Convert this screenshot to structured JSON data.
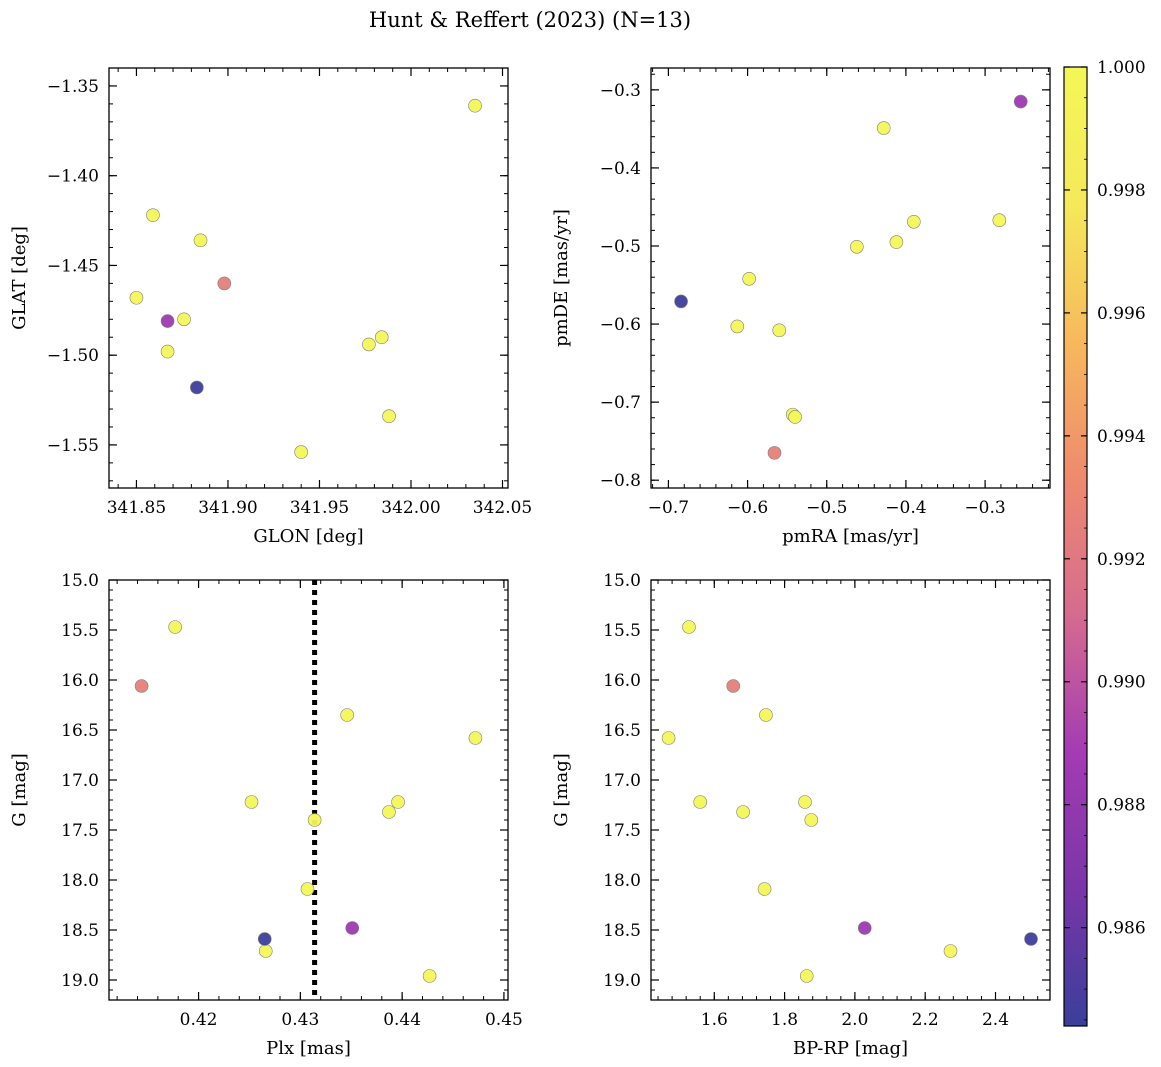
{
  "figure": {
    "title": "Hunt & Reffert (2023) (N=13)"
  },
  "colorbar": {
    "colormap": "plasma-like",
    "colors": [
      "#3a3f9a",
      "#7a35a8",
      "#a43bb4",
      "#d56b8f",
      "#ee8a6e",
      "#f7b95c",
      "#f5e95a",
      "#f4f758"
    ],
    "range": [
      0.9844,
      1.0
    ],
    "ticks": [
      {
        "value": 0.986,
        "label": "0.986"
      },
      {
        "value": 0.988,
        "label": "0.988"
      },
      {
        "value": 0.99,
        "label": "0.990"
      },
      {
        "value": 0.992,
        "label": "0.992"
      },
      {
        "value": 0.994,
        "label": "0.994"
      },
      {
        "value": 0.996,
        "label": "0.996"
      },
      {
        "value": 0.998,
        "label": "0.998"
      },
      {
        "value": 1.0,
        "label": "1.000"
      }
    ]
  },
  "chart_data": [
    {
      "type": "scatter",
      "id": "glon-glat",
      "xlabel": "GLON [deg]",
      "ylabel": "GLAT [deg]",
      "xlim": [
        341.835,
        342.053
      ],
      "ylim": [
        -1.574,
        -1.34
      ],
      "y_inverted": false,
      "xticks": [
        {
          "value": 341.85,
          "label": "341.85"
        },
        {
          "value": 341.9,
          "label": "341.90"
        },
        {
          "value": 341.95,
          "label": "341.95"
        },
        {
          "value": 342.0,
          "label": "342.00"
        },
        {
          "value": 342.05,
          "label": "342.05"
        }
      ],
      "yticks": [
        {
          "value": -1.35,
          "label": "−1.35"
        },
        {
          "value": -1.4,
          "label": "−1.40"
        },
        {
          "value": -1.45,
          "label": "−1.45"
        },
        {
          "value": -1.5,
          "label": "−1.50"
        },
        {
          "value": -1.55,
          "label": "−1.55"
        }
      ],
      "points": [
        {
          "x": 342.035,
          "y": -1.361,
          "c": 1.0
        },
        {
          "x": 341.859,
          "y": -1.422,
          "c": 1.0
        },
        {
          "x": 341.885,
          "y": -1.436,
          "c": 1.0
        },
        {
          "x": 341.85,
          "y": -1.468,
          "c": 1.0
        },
        {
          "x": 341.876,
          "y": -1.48,
          "c": 1.0
        },
        {
          "x": 341.867,
          "y": -1.498,
          "c": 1.0
        },
        {
          "x": 341.977,
          "y": -1.494,
          "c": 1.0
        },
        {
          "x": 341.984,
          "y": -1.49,
          "c": 1.0
        },
        {
          "x": 341.988,
          "y": -1.534,
          "c": 1.0
        },
        {
          "x": 341.94,
          "y": -1.554,
          "c": 1.0
        },
        {
          "x": 341.898,
          "y": -1.46,
          "c": 0.9925
        },
        {
          "x": 341.867,
          "y": -1.481,
          "c": 0.9885
        },
        {
          "x": 341.883,
          "y": -1.518,
          "c": 0.9845
        }
      ]
    },
    {
      "type": "scatter",
      "id": "pmra-pmde",
      "xlabel": "pmRA [mas/yr]",
      "ylabel": "pmDE [mas/yr]",
      "xlim": [
        -0.722,
        -0.218
      ],
      "ylim": [
        -0.81,
        -0.272
      ],
      "y_inverted": false,
      "xticks": [
        {
          "value": -0.7,
          "label": "−0.7"
        },
        {
          "value": -0.6,
          "label": "−0.6"
        },
        {
          "value": -0.5,
          "label": "−0.5"
        },
        {
          "value": -0.4,
          "label": "−0.4"
        },
        {
          "value": -0.3,
          "label": "−0.3"
        }
      ],
      "yticks": [
        {
          "value": -0.3,
          "label": "−0.3"
        },
        {
          "value": -0.4,
          "label": "−0.4"
        },
        {
          "value": -0.5,
          "label": "−0.5"
        },
        {
          "value": -0.6,
          "label": "−0.6"
        },
        {
          "value": -0.7,
          "label": "−0.7"
        },
        {
          "value": -0.8,
          "label": "−0.8"
        }
      ],
      "points": [
        {
          "x": -0.428,
          "y": -0.349,
          "c": 1.0
        },
        {
          "x": -0.39,
          "y": -0.469,
          "c": 1.0
        },
        {
          "x": -0.282,
          "y": -0.467,
          "c": 1.0
        },
        {
          "x": -0.412,
          "y": -0.495,
          "c": 1.0
        },
        {
          "x": -0.462,
          "y": -0.501,
          "c": 1.0
        },
        {
          "x": -0.598,
          "y": -0.542,
          "c": 1.0
        },
        {
          "x": -0.613,
          "y": -0.603,
          "c": 1.0
        },
        {
          "x": -0.56,
          "y": -0.608,
          "c": 1.0
        },
        {
          "x": -0.543,
          "y": -0.716,
          "c": 1.0
        },
        {
          "x": -0.54,
          "y": -0.719,
          "c": 1.0
        },
        {
          "x": -0.566,
          "y": -0.765,
          "c": 0.9925
        },
        {
          "x": -0.255,
          "y": -0.315,
          "c": 0.9885
        },
        {
          "x": -0.684,
          "y": -0.571,
          "c": 0.9845
        }
      ]
    },
    {
      "type": "scatter",
      "id": "plx-g",
      "xlabel": "Plx [mas]",
      "ylabel": "G [mag]",
      "xlim": [
        0.4112,
        0.4504
      ],
      "ylim": [
        15.0,
        19.2
      ],
      "y_inverted": true,
      "vline": {
        "x": 0.4314,
        "style": "dotted"
      },
      "xticks": [
        {
          "value": 0.42,
          "label": "0.42"
        },
        {
          "value": 0.43,
          "label": "0.43"
        },
        {
          "value": 0.44,
          "label": "0.44"
        },
        {
          "value": 0.45,
          "label": "0.45"
        }
      ],
      "yticks": [
        {
          "value": 15.0,
          "label": "15.0"
        },
        {
          "value": 15.5,
          "label": "15.5"
        },
        {
          "value": 16.0,
          "label": "16.0"
        },
        {
          "value": 16.5,
          "label": "16.5"
        },
        {
          "value": 17.0,
          "label": "17.0"
        },
        {
          "value": 17.5,
          "label": "17.5"
        },
        {
          "value": 18.0,
          "label": "18.0"
        },
        {
          "value": 18.5,
          "label": "18.5"
        },
        {
          "value": 19.0,
          "label": "19.0"
        }
      ],
      "points": [
        {
          "x": 0.4177,
          "y": 15.47,
          "c": 1.0
        },
        {
          "x": 0.4346,
          "y": 16.35,
          "c": 1.0
        },
        {
          "x": 0.4472,
          "y": 16.58,
          "c": 1.0
        },
        {
          "x": 0.4252,
          "y": 17.22,
          "c": 1.0
        },
        {
          "x": 0.4396,
          "y": 17.22,
          "c": 1.0
        },
        {
          "x": 0.4387,
          "y": 17.32,
          "c": 1.0
        },
        {
          "x": 0.4314,
          "y": 17.4,
          "c": 1.0
        },
        {
          "x": 0.4307,
          "y": 18.09,
          "c": 1.0
        },
        {
          "x": 0.4266,
          "y": 18.71,
          "c": 1.0
        },
        {
          "x": 0.4427,
          "y": 18.96,
          "c": 1.0
        },
        {
          "x": 0.4144,
          "y": 16.06,
          "c": 0.9925
        },
        {
          "x": 0.4351,
          "y": 18.48,
          "c": 0.9885
        },
        {
          "x": 0.4265,
          "y": 18.59,
          "c": 0.9845
        }
      ]
    },
    {
      "type": "scatter",
      "id": "bprp-g",
      "xlabel": "BP-RP [mag]",
      "ylabel": "G [mag]",
      "xlim": [
        1.42,
        2.555
      ],
      "ylim": [
        15.0,
        19.2
      ],
      "y_inverted": true,
      "xticks": [
        {
          "value": 1.6,
          "label": "1.6"
        },
        {
          "value": 1.8,
          "label": "1.8"
        },
        {
          "value": 2.0,
          "label": "2.0"
        },
        {
          "value": 2.2,
          "label": "2.2"
        },
        {
          "value": 2.4,
          "label": "2.4"
        }
      ],
      "yticks": [
        {
          "value": 15.0,
          "label": "15.0"
        },
        {
          "value": 15.5,
          "label": "15.5"
        },
        {
          "value": 16.0,
          "label": "16.0"
        },
        {
          "value": 16.5,
          "label": "16.5"
        },
        {
          "value": 17.0,
          "label": "17.0"
        },
        {
          "value": 17.5,
          "label": "17.5"
        },
        {
          "value": 18.0,
          "label": "18.0"
        },
        {
          "value": 18.5,
          "label": "18.5"
        },
        {
          "value": 19.0,
          "label": "19.0"
        }
      ],
      "points": [
        {
          "x": 1.528,
          "y": 15.47,
          "c": 1.0
        },
        {
          "x": 1.747,
          "y": 16.35,
          "c": 1.0
        },
        {
          "x": 1.47,
          "y": 16.58,
          "c": 1.0
        },
        {
          "x": 1.56,
          "y": 17.22,
          "c": 1.0
        },
        {
          "x": 1.858,
          "y": 17.22,
          "c": 1.0
        },
        {
          "x": 1.682,
          "y": 17.32,
          "c": 1.0
        },
        {
          "x": 1.876,
          "y": 17.4,
          "c": 1.0
        },
        {
          "x": 1.743,
          "y": 18.09,
          "c": 1.0
        },
        {
          "x": 2.272,
          "y": 18.71,
          "c": 1.0
        },
        {
          "x": 1.863,
          "y": 18.96,
          "c": 1.0
        },
        {
          "x": 1.654,
          "y": 16.06,
          "c": 0.9925
        },
        {
          "x": 2.028,
          "y": 18.48,
          "c": 0.9885
        },
        {
          "x": 2.501,
          "y": 18.59,
          "c": 0.9845
        }
      ]
    }
  ]
}
